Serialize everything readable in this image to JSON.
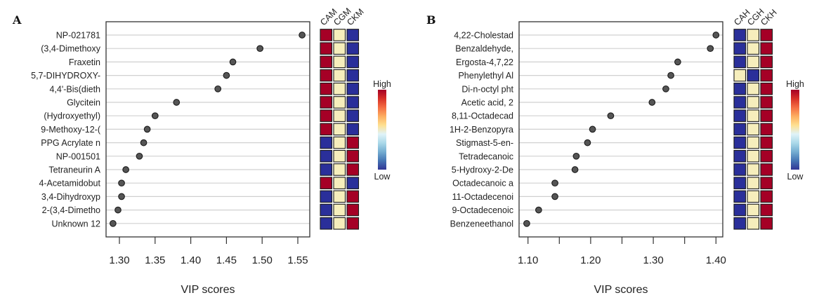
{
  "chart_data": [
    {
      "type": "scatter",
      "panel": "A",
      "title": "",
      "xlabel": "VIP scores",
      "ylabel": "",
      "xlim": [
        1.285,
        1.565
      ],
      "xticks": [
        1.3,
        1.35,
        1.4,
        1.45,
        1.5,
        1.55
      ],
      "xtick_labels": [
        "1.30",
        "1.35",
        "1.40",
        "1.45",
        "1.50",
        "1.55"
      ],
      "grid": "horizontal",
      "categories": [
        "NP-021781",
        "(3,4-Dimethoxy",
        "Fraxetin",
        "5,7-DIHYDROXY-",
        "4,4'-Bis(dieth",
        "Glycitein",
        "(Hydroxyethyl)",
        "9-Methoxy-12-(",
        "PPG Acrylate n",
        "NP-001501",
        "Tetraneurin A",
        "4-Acetamidobut",
        "3,4-Dihydroxyp",
        "2-(3,4-Dimetho",
        "Unknown 12"
      ],
      "values": [
        1.556,
        1.497,
        1.459,
        1.45,
        1.438,
        1.38,
        1.35,
        1.339,
        1.334,
        1.328,
        1.309,
        1.303,
        1.303,
        1.298,
        1.291
      ],
      "heatmap": {
        "columns": [
          "CAM",
          "CGM",
          "CKM"
        ],
        "levels": [
          [
            "high",
            "mid",
            "low"
          ],
          [
            "high",
            "mid",
            "low"
          ],
          [
            "high",
            "mid",
            "low"
          ],
          [
            "high",
            "mid",
            "low"
          ],
          [
            "high",
            "mid",
            "low"
          ],
          [
            "high",
            "mid",
            "low"
          ],
          [
            "high",
            "mid",
            "low"
          ],
          [
            "high",
            "mid",
            "low"
          ],
          [
            "low",
            "mid",
            "high"
          ],
          [
            "low",
            "mid",
            "high"
          ],
          [
            "low",
            "mid",
            "high"
          ],
          [
            "high",
            "mid",
            "low"
          ],
          [
            "low",
            "mid",
            "high"
          ],
          [
            "low",
            "mid",
            "high"
          ],
          [
            "low",
            "mid",
            "high"
          ]
        ]
      },
      "legend": {
        "high_label": "High",
        "low_label": "Low",
        "placement": "right"
      }
    },
    {
      "type": "scatter",
      "panel": "B",
      "title": "",
      "xlabel": "VIP scores",
      "ylabel": "",
      "xlim": [
        1.085,
        1.412
      ],
      "xticks": [
        1.1,
        1.15,
        1.2,
        1.25,
        1.3,
        1.35,
        1.4
      ],
      "xtick_labels": [
        "1.10",
        "",
        "1.20",
        "",
        "1.30",
        "",
        "1.40"
      ],
      "grid": "horizontal",
      "categories": [
        "4,22-Cholestad",
        "Benzaldehyde,",
        "Ergosta-4,7,22",
        "Phenylethyl Al",
        "Di-n-octyl pht",
        "Acetic acid, 2",
        "8,11-Octadecad",
        "1H-2-Benzopyra",
        "Stigmast-5-en-",
        "Tetradecanoic",
        "5-Hydroxy-2-De",
        "Octadecanoic a",
        "11-Octadecenoi",
        "9-Octadecenoic",
        "Benzeneethanol"
      ],
      "values": [
        1.4,
        1.391,
        1.339,
        1.328,
        1.32,
        1.298,
        1.232,
        1.203,
        1.195,
        1.177,
        1.175,
        1.143,
        1.143,
        1.117,
        1.098
      ],
      "heatmap": {
        "columns": [
          "CAH",
          "CGH",
          "CKH"
        ],
        "levels": [
          [
            "low",
            "mid",
            "high"
          ],
          [
            "low",
            "mid",
            "high"
          ],
          [
            "low",
            "mid",
            "high"
          ],
          [
            "mid",
            "low",
            "high"
          ],
          [
            "low",
            "mid",
            "high"
          ],
          [
            "low",
            "mid",
            "high"
          ],
          [
            "low",
            "mid",
            "high"
          ],
          [
            "low",
            "mid",
            "high"
          ],
          [
            "low",
            "mid",
            "high"
          ],
          [
            "low",
            "mid",
            "high"
          ],
          [
            "low",
            "mid",
            "high"
          ],
          [
            "low",
            "mid",
            "high"
          ],
          [
            "low",
            "mid",
            "high"
          ],
          [
            "low",
            "mid",
            "high"
          ],
          [
            "low",
            "mid",
            "high"
          ]
        ]
      },
      "legend": {
        "high_label": "High",
        "low_label": "Low",
        "placement": "right"
      }
    }
  ],
  "colors": {
    "high": "#a50026",
    "mid": "#f6eebc",
    "low": "#2a2f9a",
    "dot_fill": "#555555",
    "gridline": "#d0d0d0",
    "gradient": [
      "#a50026",
      "#d73027",
      "#f46d43",
      "#fdae61",
      "#fee090",
      "#e0f3f8",
      "#abd9e9",
      "#74add1",
      "#4575b4",
      "#313695"
    ]
  }
}
